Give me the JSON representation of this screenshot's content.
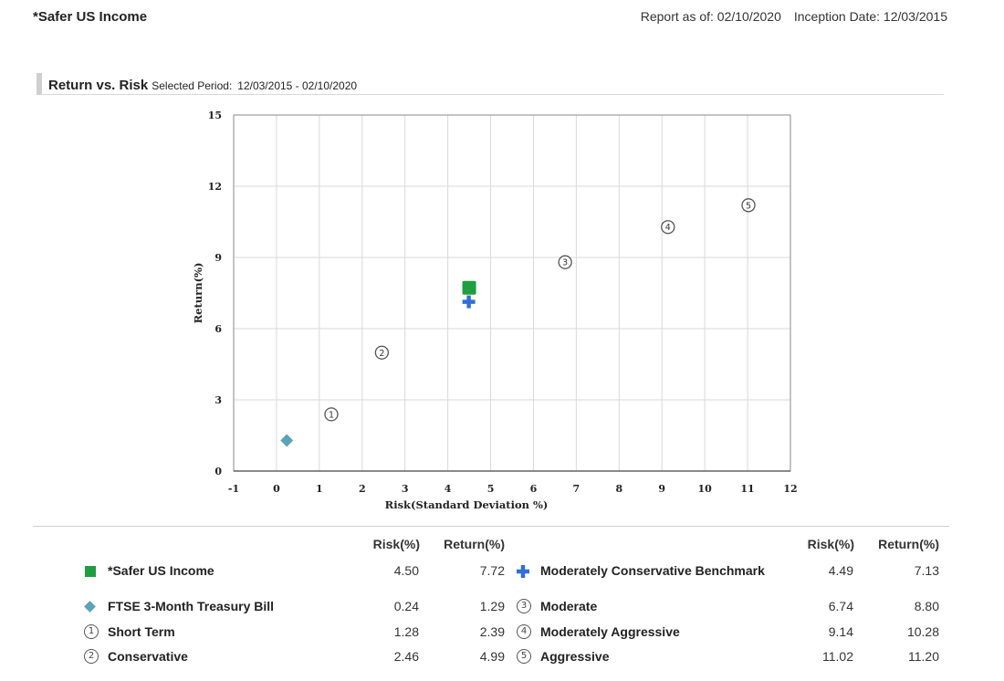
{
  "header": {
    "fund_name": "*Safer US Income",
    "report_as_of": "Report as of: 02/10/2020",
    "inception_date": "Inception Date: 12/03/2015"
  },
  "section": {
    "title": "Return vs. Risk",
    "subtitle": "Selected Period:",
    "period": "12/03/2015 - 02/10/2020"
  },
  "chart_data": {
    "type": "scatter",
    "xlabel": "Risk(Standard Deviation %)",
    "ylabel": "Return(%)",
    "xlim": [
      -1,
      12
    ],
    "ylim": [
      0,
      15
    ],
    "xticks": [
      -1,
      0,
      1,
      2,
      3,
      4,
      5,
      6,
      7,
      8,
      9,
      10,
      11,
      12
    ],
    "yticks": [
      0,
      3,
      6,
      9,
      12,
      15
    ],
    "grid": true,
    "series": [
      {
        "name": "*Safer US Income",
        "marker": "square",
        "color": "#1e9e3e",
        "x": 4.5,
        "y": 7.72
      },
      {
        "name": "Moderately Conservative Benchmark",
        "marker": "cross",
        "color": "#2f6fd6",
        "x": 4.49,
        "y": 7.13
      },
      {
        "name": "FTSE 3-Month Treasury Bill",
        "marker": "diamond",
        "color": "#5aa3b8",
        "x": 0.24,
        "y": 1.29
      },
      {
        "name": "Short Term",
        "marker": "circle-1",
        "label": "1",
        "x": 1.28,
        "y": 2.39
      },
      {
        "name": "Conservative",
        "marker": "circle-2",
        "label": "2",
        "x": 2.46,
        "y": 4.99
      },
      {
        "name": "Moderate",
        "marker": "circle-3",
        "label": "3",
        "x": 6.74,
        "y": 8.8
      },
      {
        "name": "Moderately Aggressive",
        "marker": "circle-4",
        "label": "4",
        "x": 9.14,
        "y": 10.28
      },
      {
        "name": "Aggressive",
        "marker": "circle-5",
        "label": "5",
        "x": 11.02,
        "y": 11.2
      }
    ]
  },
  "legend": {
    "col_risk": "Risk(%)",
    "col_return": "Return(%)",
    "rows": [
      {
        "name": "*Safer US Income",
        "risk": "4.50",
        "ret": "7.72",
        "marker": "square",
        "color": "#1e9e3e"
      },
      {
        "name": "FTSE 3-Month Treasury Bill",
        "risk": "0.24",
        "ret": "1.29",
        "marker": "diamond",
        "color": "#5aa3b8"
      },
      {
        "name": "Short Term",
        "risk": "1.28",
        "ret": "2.39",
        "marker": "circle",
        "label": "1"
      },
      {
        "name": "Conservative",
        "risk": "2.46",
        "ret": "4.99",
        "marker": "circle",
        "label": "2"
      },
      {
        "name": "Moderately Conservative Benchmark",
        "risk": "4.49",
        "ret": "7.13",
        "marker": "cross",
        "color": "#2f6fd6"
      },
      {
        "name": "Moderate",
        "risk": "6.74",
        "ret": "8.80",
        "marker": "circle",
        "label": "3"
      },
      {
        "name": "Moderately Aggressive",
        "risk": "9.14",
        "ret": "10.28",
        "marker": "circle",
        "label": "4"
      },
      {
        "name": "Aggressive",
        "risk": "11.02",
        "ret": "11.20",
        "marker": "circle",
        "label": "5"
      }
    ]
  }
}
